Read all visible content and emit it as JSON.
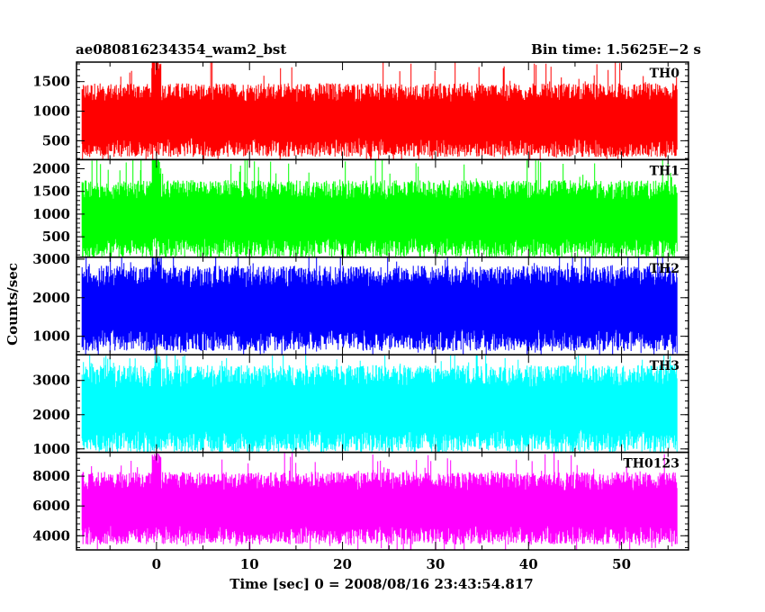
{
  "header": {
    "title": "ae080816234354_wam2_bst",
    "bin_time": "Bin time: 1.5625E−2 s"
  },
  "chart_data": {
    "type": "line",
    "xlabel": "Time [sec] 0 = 2008/08/16 23:43:54.817",
    "ylabel": "Counts/sec",
    "xlim": [
      -8.6,
      57.2
    ],
    "x_data_range": [
      -8.0,
      56.0
    ],
    "x_ticks": [
      0,
      10,
      20,
      30,
      40,
      50
    ],
    "x_tick_labels": [
      "0",
      "10",
      "20",
      "30",
      "40",
      "50"
    ],
    "grid": false,
    "legend": "none",
    "panels": [
      {
        "name": "TH0",
        "color": "#ff0000",
        "ylim": [
          180,
          1830
        ],
        "y_ticks": [
          500,
          1000,
          1500
        ],
        "y_tick_labels": [
          "500",
          "1000",
          "1500"
        ],
        "typical_low": 300,
        "typical_high": 1400,
        "spike_max": 1830,
        "spike_at_t0": 1830
      },
      {
        "name": "TH1",
        "color": "#00ff00",
        "ylim": [
          50,
          2200
        ],
        "y_ticks": [
          500,
          1000,
          1500,
          2000
        ],
        "y_tick_labels": [
          "500",
          "1000",
          "1500",
          "2000"
        ],
        "typical_low": 150,
        "typical_high": 1650,
        "spike_max": 2200,
        "spike_at_t0": 2200
      },
      {
        "name": "TH2",
        "color": "#0000ff",
        "ylim": [
          520,
          3050
        ],
        "y_ticks": [
          1000,
          2000,
          3000
        ],
        "y_tick_labels": [
          "1000",
          "2000",
          "3000"
        ],
        "typical_low": 750,
        "typical_high": 2700,
        "spike_max": 3050,
        "spike_at_t0": 3050
      },
      {
        "name": "TH3",
        "color": "#00ffff",
        "ylim": [
          900,
          3750
        ],
        "y_ticks": [
          1000,
          2000,
          3000
        ],
        "y_tick_labels": [
          "1000",
          "2000",
          "3000"
        ],
        "typical_low": 1050,
        "typical_high": 3300,
        "spike_max": 3750,
        "spike_at_t0": 3750
      },
      {
        "name": "TH0123",
        "color": "#ff00ff",
        "ylim": [
          3050,
          9600
        ],
        "y_ticks": [
          4000,
          6000,
          8000
        ],
        "y_tick_labels": [
          "4000",
          "6000",
          "8000"
        ],
        "typical_low": 3700,
        "typical_high": 8000,
        "spike_max": 9600,
        "spike_at_t0": 9600
      }
    ]
  }
}
